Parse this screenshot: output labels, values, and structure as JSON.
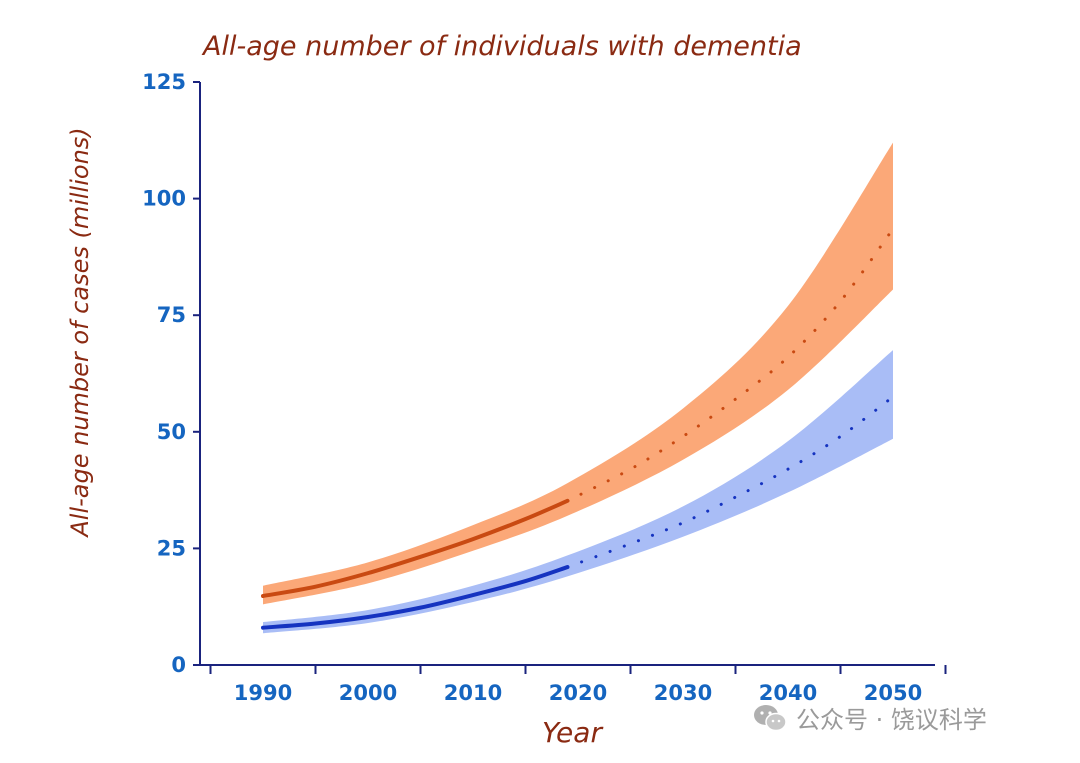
{
  "chart_data": {
    "type": "line",
    "title": "All-age number of individuals with dementia",
    "xlabel": "Year",
    "ylabel": "All-age number of cases (millions)",
    "xlim": [
      1984,
      2054
    ],
    "ylim": [
      0,
      125
    ],
    "x_ticks": [
      1990,
      2000,
      2010,
      2020,
      2030,
      2040,
      2050
    ],
    "y_ticks": [
      0,
      25,
      50,
      75,
      100,
      125
    ],
    "grid": false,
    "legend": "none",
    "series": [
      {
        "color": "#c94a12",
        "band_color": "#fba878",
        "observed": {
          "x": [
            1990,
            1995,
            2000,
            2005,
            2010,
            2015,
            2019
          ],
          "y": [
            14.8,
            16.8,
            19.7,
            23.2,
            27.0,
            31.3,
            35.2
          ]
        },
        "projected": {
          "x": [
            2019,
            2025,
            2030,
            2035,
            2040,
            2045,
            2050
          ],
          "y": [
            35.2,
            42.0,
            49.0,
            57.0,
            66.0,
            78.0,
            93.5
          ]
        },
        "band": {
          "x": [
            1990,
            2000,
            2010,
            2019,
            2030,
            2040,
            2050
          ],
          "lower": [
            13.0,
            17.5,
            24.5,
            32.0,
            44.0,
            59.0,
            80.5
          ],
          "upper": [
            17.0,
            22.0,
            30.0,
            39.0,
            55.0,
            77.0,
            112.0
          ]
        }
      },
      {
        "color": "#1533c0",
        "band_color": "#a9bdf6",
        "observed": {
          "x": [
            1990,
            1995,
            2000,
            2005,
            2010,
            2015,
            2019
          ],
          "y": [
            8.0,
            8.9,
            10.3,
            12.3,
            15.0,
            18.0,
            21.0
          ]
        },
        "projected": {
          "x": [
            2019,
            2025,
            2030,
            2035,
            2040,
            2045,
            2050
          ],
          "y": [
            21.0,
            26.0,
            30.5,
            36.0,
            42.0,
            49.0,
            57.5
          ]
        },
        "band": {
          "x": [
            1990,
            2000,
            2010,
            2019,
            2030,
            2040,
            2050
          ],
          "lower": [
            6.8,
            9.0,
            13.5,
            19.0,
            27.5,
            37.0,
            48.5
          ],
          "upper": [
            9.2,
            11.8,
            17.0,
            23.5,
            34.0,
            48.0,
            67.5
          ]
        }
      }
    ]
  },
  "watermark": {
    "icon": "wechat-icon",
    "text": "公众号 · 饶议科学"
  }
}
